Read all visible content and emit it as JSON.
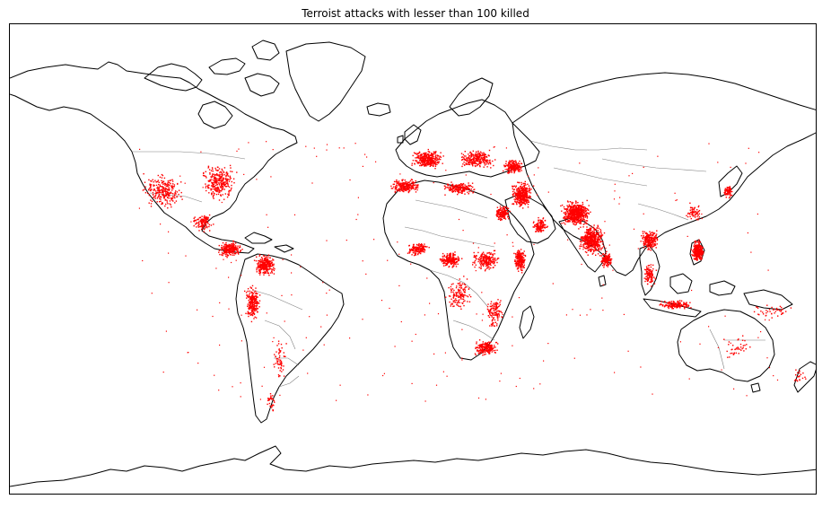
{
  "title": "Terroist attacks with lesser than 100 killed",
  "map": {
    "projection": "mercator",
    "coastline_color": "#000000",
    "border_color": "#808080",
    "point_color": "#ff0000",
    "background_color": "#ffffff"
  },
  "chart_data": {
    "type": "scatter",
    "title": "Terroist attacks with lesser than 100 killed",
    "xlabel": "",
    "ylabel": "",
    "grid": false,
    "legend": "none",
    "marker_color": "#ff0000"
  }
}
